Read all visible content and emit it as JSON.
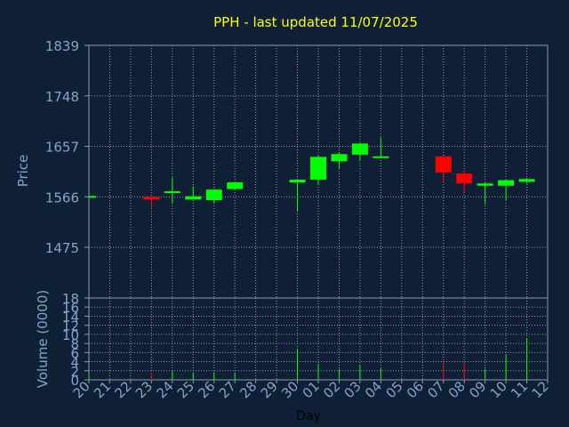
{
  "chart_data": [
    {
      "type": "candlestick",
      "title": "PPH - last updated 11/07/2025",
      "xlabel": "Day",
      "ylabel": "Price",
      "ylim": [
        1475,
        1839
      ],
      "yticks": [
        1475,
        1566,
        1657,
        1748,
        1839
      ],
      "categories": [
        "20",
        "21",
        "22",
        "23",
        "24",
        "25",
        "26",
        "27",
        "28",
        "29",
        "30",
        "01",
        "02",
        "03",
        "04",
        "05",
        "06",
        "07",
        "08",
        "09",
        "10",
        "11",
        "12"
      ],
      "candles": [
        {
          "day": "20",
          "open": 1566,
          "close": 1566,
          "high": 1566,
          "low": 1566,
          "dir": "flat"
        },
        {
          "day": "23",
          "open": 1566,
          "close": 1561,
          "high": 1566,
          "low": 1545,
          "dir": "down"
        },
        {
          "day": "24",
          "open": 1573,
          "close": 1576,
          "high": 1601,
          "low": 1555,
          "dir": "up"
        },
        {
          "day": "25",
          "open": 1561,
          "close": 1567,
          "high": 1585,
          "low": 1561,
          "dir": "up"
        },
        {
          "day": "26",
          "open": 1560,
          "close": 1579,
          "high": 1580,
          "low": 1555,
          "dir": "up"
        },
        {
          "day": "27",
          "open": 1580,
          "close": 1592,
          "high": 1593,
          "low": 1578,
          "dir": "up"
        },
        {
          "day": "30",
          "open": 1592,
          "close": 1597,
          "high": 1597,
          "low": 1540,
          "dir": "up"
        },
        {
          "day": "01",
          "open": 1597,
          "close": 1638,
          "high": 1641,
          "low": 1588,
          "dir": "up"
        },
        {
          "day": "02",
          "open": 1630,
          "close": 1643,
          "high": 1645,
          "low": 1616,
          "dir": "up"
        },
        {
          "day": "03",
          "open": 1642,
          "close": 1662,
          "high": 1663,
          "low": 1631,
          "dir": "up"
        },
        {
          "day": "04",
          "open": 1636,
          "close": 1639,
          "high": 1673,
          "low": 1636,
          "dir": "up"
        },
        {
          "day": "07",
          "open": 1639,
          "close": 1610,
          "high": 1639,
          "low": 1594,
          "dir": "down"
        },
        {
          "day": "08",
          "open": 1608,
          "close": 1590,
          "high": 1613,
          "low": 1575,
          "dir": "down"
        },
        {
          "day": "09",
          "open": 1586,
          "close": 1590,
          "high": 1592,
          "low": 1553,
          "dir": "up"
        },
        {
          "day": "10",
          "open": 1586,
          "close": 1596,
          "high": 1597,
          "low": 1560,
          "dir": "up"
        },
        {
          "day": "11",
          "open": 1593,
          "close": 1598,
          "high": 1600,
          "low": 1590,
          "dir": "up"
        }
      ],
      "colors": {
        "up": "#00ff00",
        "down": "#ff0000",
        "flat": "#00ff00"
      }
    },
    {
      "type": "bar",
      "ylabel": "Volume (0000)",
      "ylim": [
        0,
        18
      ],
      "yticks": [
        0,
        2,
        4,
        6,
        8,
        10,
        12,
        14,
        16,
        18
      ],
      "categories": [
        "20",
        "21",
        "22",
        "23",
        "24",
        "25",
        "26",
        "27",
        "28",
        "29",
        "30",
        "01",
        "02",
        "03",
        "04",
        "05",
        "06",
        "07",
        "08",
        "09",
        "10",
        "11",
        "12"
      ],
      "series": [
        {
          "values": [
            0.8,
            0,
            0,
            1.5,
            1.9,
            1.6,
            1.7,
            1.6,
            0,
            0,
            6.8,
            3.5,
            2.4,
            3.3,
            2.5,
            0,
            0,
            4.0,
            3.8,
            2.4,
            5.6,
            9.2,
            0
          ]
        }
      ],
      "bar_dir": [
        "up",
        "up",
        "up",
        "down",
        "up",
        "up",
        "up",
        "up",
        "up",
        "up",
        "up",
        "up",
        "up",
        "up",
        "up",
        "up",
        "up",
        "down",
        "down",
        "up",
        "up",
        "up",
        "up"
      ]
    }
  ],
  "colors": {
    "background": "#0f2036",
    "axis": "#8c9aa8",
    "grid": "#8c9aa8",
    "title": "#ffff00",
    "label": "#7fa6c9",
    "day_label": "#000000"
  }
}
